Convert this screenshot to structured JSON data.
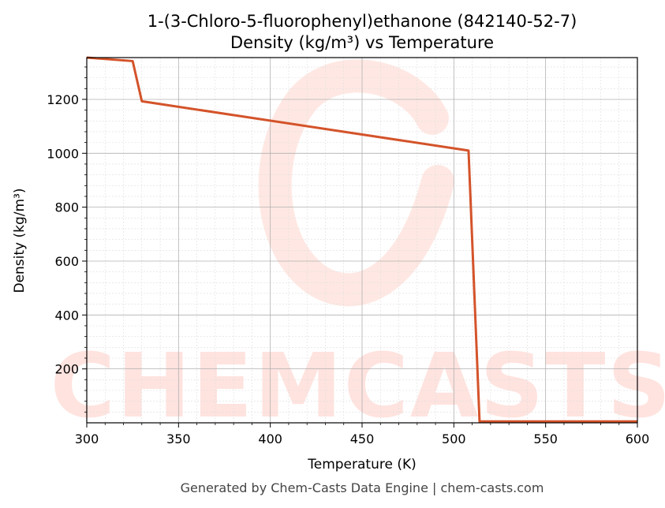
{
  "chart_data": {
    "type": "line",
    "title": "1-(3-Chloro-5-fluorophenyl)ethanone (842140-52-7)",
    "subtitle": "Density (kg/m³) vs Temperature",
    "xlabel": "Temperature (K)",
    "ylabel": "Density (kg/m³)",
    "xlim": [
      300,
      600
    ],
    "ylim": [
      0,
      1355
    ],
    "xticks": [
      300,
      350,
      400,
      450,
      500,
      550,
      600
    ],
    "yticks": [
      200,
      400,
      600,
      800,
      1000,
      1200
    ],
    "grid": true,
    "series": [
      {
        "color": "#d4532a",
        "x": [
          300,
          325,
          330,
          508,
          514,
          600
        ],
        "y": [
          1355,
          1342,
          1193,
          1010,
          5,
          5
        ]
      }
    ]
  },
  "footer": "Generated by Chem-Casts Data Engine | chem-casts.com",
  "watermark": "CHEMCASTS"
}
